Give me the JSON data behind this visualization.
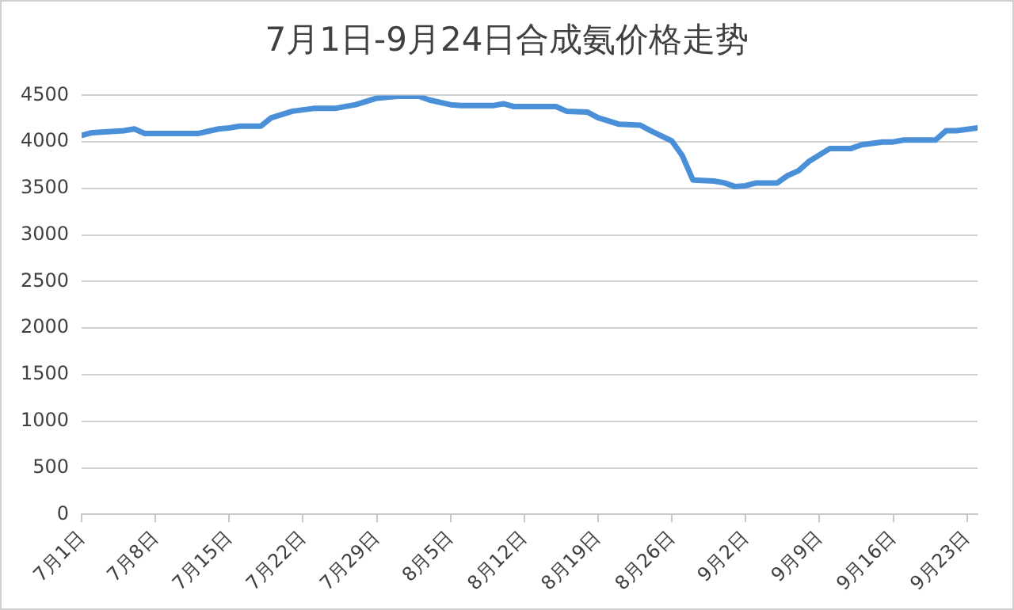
{
  "chart_data": {
    "type": "line",
    "title": "7月1日-9月24日合成氨价格走势",
    "x": [
      "--07-01",
      "--07-02",
      "--07-05",
      "--07-06",
      "--07-07",
      "--07-12",
      "--07-14",
      "--07-15",
      "--07-16",
      "--07-18",
      "--07-19",
      "--07-21",
      "--07-23",
      "--07-25",
      "--07-27",
      "--07-29",
      "--07-31",
      "--08-02",
      "--08-03",
      "--08-05",
      "--08-06",
      "--08-09",
      "--08-10",
      "--08-11",
      "--08-15",
      "--08-16",
      "--08-18",
      "--08-19",
      "--08-21",
      "--08-23",
      "--08-24",
      "--08-26",
      "--08-27",
      "--08-28",
      "--08-30",
      "--08-31",
      "--09-01",
      "--09-02",
      "--09-03",
      "--09-05",
      "--09-06",
      "--09-07",
      "--09-08",
      "--09-10",
      "--09-12",
      "--09-13",
      "--09-15",
      "--09-16",
      "--09-17",
      "--09-20",
      "--09-21",
      "--09-22",
      "--09-24"
    ],
    "series": [
      {
        "color": "#4a90d9",
        "values": [
          4070,
          4100,
          4120,
          4140,
          4090,
          4090,
          4140,
          4150,
          4170,
          4170,
          4260,
          4330,
          4360,
          4360,
          4400,
          4470,
          4490,
          4490,
          4450,
          4400,
          4390,
          4390,
          4410,
          4380,
          4380,
          4330,
          4320,
          4260,
          4190,
          4180,
          4120,
          4010,
          3850,
          3590,
          3580,
          3560,
          3520,
          3530,
          3560,
          3560,
          3640,
          3690,
          3790,
          3930,
          3930,
          3970,
          4000,
          4000,
          4020,
          4020,
          4120,
          4120,
          4150
        ]
      }
    ],
    "xlim": [
      "--07-01",
      "--09-24"
    ],
    "xticks": [
      {
        "value": "--07-01",
        "label": "7月1日"
      },
      {
        "value": "--07-08",
        "label": "7月8日"
      },
      {
        "value": "--07-15",
        "label": "7月15日"
      },
      {
        "value": "--07-22",
        "label": "7月22日"
      },
      {
        "value": "--07-29",
        "label": "7月29日"
      },
      {
        "value": "--08-05",
        "label": "8月5日"
      },
      {
        "value": "--08-12",
        "label": "8月12日"
      },
      {
        "value": "--08-19",
        "label": "8月19日"
      },
      {
        "value": "--08-26",
        "label": "8月26日"
      },
      {
        "value": "--09-02",
        "label": "9月2日"
      },
      {
        "value": "--09-09",
        "label": "9月9日"
      },
      {
        "value": "--09-16",
        "label": "9月16日"
      },
      {
        "value": "--09-23",
        "label": "9月23日"
      }
    ],
    "ylim": [
      0,
      4500
    ],
    "yticks": [
      0,
      500,
      1000,
      1500,
      2000,
      2500,
      3000,
      3500,
      4000,
      4500
    ],
    "grid": "y",
    "legend": false,
    "marker": "none",
    "line_style": "solid"
  }
}
